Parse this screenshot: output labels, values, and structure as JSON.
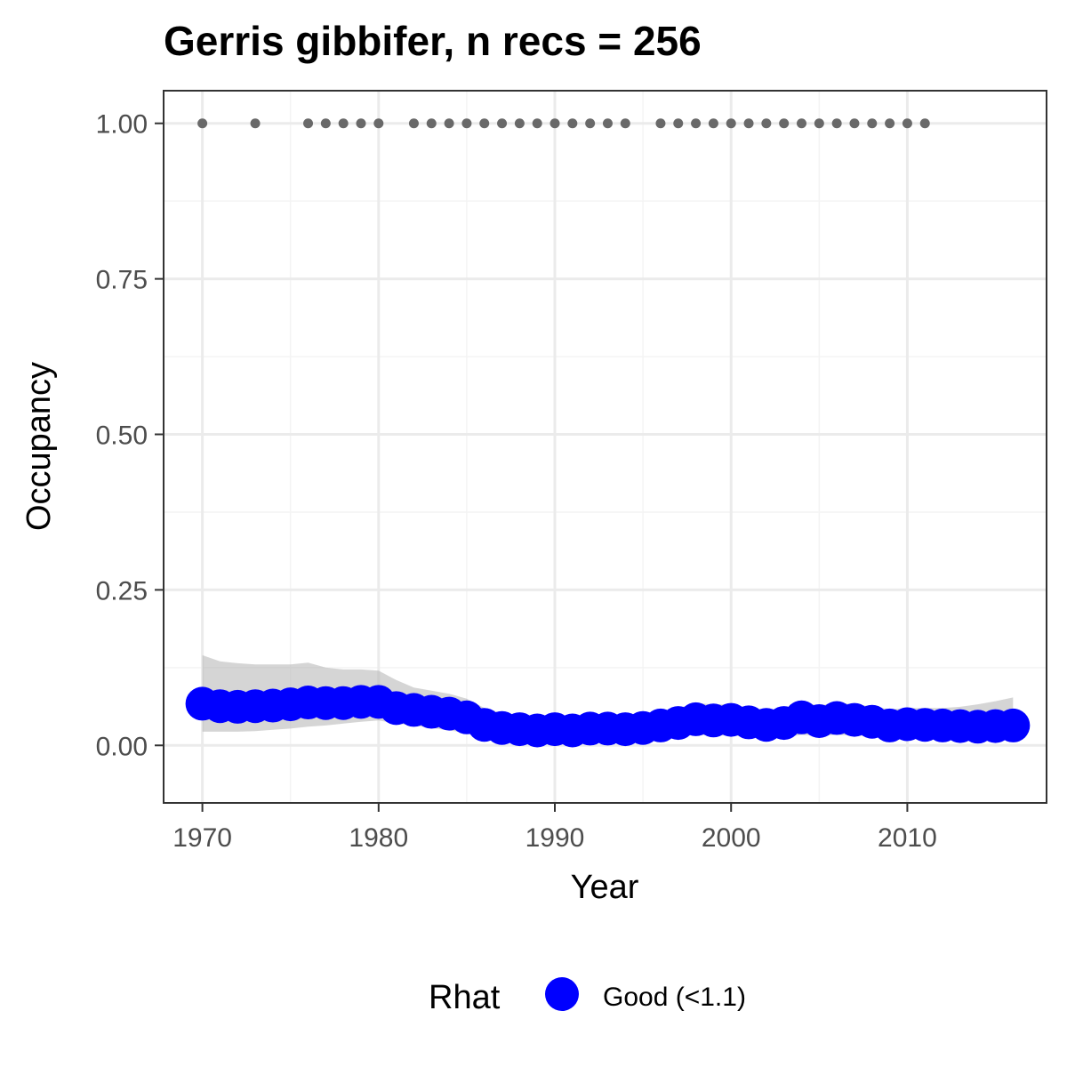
{
  "chart_data": {
    "type": "line",
    "title": "Gerris gibbifer, n recs = 256",
    "xlabel": "Year",
    "ylabel": "Occupancy",
    "xlim": [
      1967.8,
      2017.9
    ],
    "ylim": [
      -0.0925,
      1.0525
    ],
    "x_ticks": [
      1970,
      1980,
      1990,
      2000,
      2010
    ],
    "x_tick_labels": [
      "1970",
      "1980",
      "1990",
      "2000",
      "2010"
    ],
    "y_ticks": [
      0,
      0.25,
      0.5,
      0.75,
      1
    ],
    "y_tick_labels": [
      "0.00",
      "0.25",
      "0.50",
      "0.75",
      "1.00"
    ],
    "grid": true,
    "series": [
      {
        "name": "Good (<1.1)",
        "color": "#0000ff",
        "x": [
          1970,
          1971,
          1972,
          1973,
          1974,
          1975,
          1976,
          1977,
          1978,
          1979,
          1980,
          1981,
          1982,
          1983,
          1984,
          1985,
          1986,
          1987,
          1988,
          1989,
          1990,
          1991,
          1992,
          1993,
          1994,
          1995,
          1996,
          1997,
          1998,
          1999,
          2000,
          2001,
          2002,
          2003,
          2004,
          2005,
          2006,
          2007,
          2008,
          2009,
          2010,
          2011,
          2012,
          2013,
          2014,
          2015,
          2016
        ],
        "values": [
          0.067,
          0.063,
          0.062,
          0.063,
          0.064,
          0.066,
          0.069,
          0.068,
          0.068,
          0.07,
          0.07,
          0.06,
          0.057,
          0.054,
          0.051,
          0.045,
          0.033,
          0.028,
          0.026,
          0.024,
          0.026,
          0.024,
          0.027,
          0.027,
          0.026,
          0.028,
          0.032,
          0.036,
          0.042,
          0.04,
          0.041,
          0.037,
          0.033,
          0.036,
          0.045,
          0.039,
          0.044,
          0.041,
          0.038,
          0.032,
          0.034,
          0.033,
          0.032,
          0.031,
          0.03,
          0.031,
          0.032
        ],
        "lower": [
          0.022,
          0.022,
          0.022,
          0.023,
          0.025,
          0.027,
          0.03,
          0.032,
          0.035,
          0.038,
          0.04,
          0.035,
          0.032,
          0.028,
          0.024,
          0.02,
          0.013,
          0.01,
          0.009,
          0.008,
          0.008,
          0.008,
          0.009,
          0.009,
          0.009,
          0.01,
          0.012,
          0.014,
          0.017,
          0.016,
          0.016,
          0.014,
          0.012,
          0.013,
          0.017,
          0.015,
          0.017,
          0.016,
          0.015,
          0.012,
          0.013,
          0.012,
          0.011,
          0.01,
          0.01,
          0.01,
          0.01
        ],
        "upper": [
          0.145,
          0.135,
          0.132,
          0.13,
          0.13,
          0.13,
          0.133,
          0.125,
          0.122,
          0.122,
          0.12,
          0.105,
          0.093,
          0.088,
          0.083,
          0.075,
          0.06,
          0.052,
          0.048,
          0.045,
          0.046,
          0.044,
          0.047,
          0.047,
          0.046,
          0.049,
          0.054,
          0.06,
          0.068,
          0.066,
          0.066,
          0.061,
          0.056,
          0.059,
          0.07,
          0.064,
          0.069,
          0.066,
          0.063,
          0.058,
          0.06,
          0.06,
          0.06,
          0.062,
          0.066,
          0.071,
          0.077
        ]
      }
    ],
    "observations": {
      "value": 1,
      "x": [
        1970,
        1973,
        1976,
        1977,
        1978,
        1979,
        1980,
        1982,
        1983,
        1984,
        1985,
        1986,
        1987,
        1988,
        1989,
        1990,
        1991,
        1992,
        1993,
        1994,
        1996,
        1997,
        1998,
        1999,
        2000,
        2001,
        2002,
        2003,
        2004,
        2005,
        2006,
        2007,
        2008,
        2009,
        2010,
        2011
      ]
    },
    "legend": {
      "title": "Rhat",
      "placement": "bottom",
      "entries": [
        {
          "label": "Good (<1.1)",
          "color": "#0000ff"
        }
      ]
    },
    "colors": {
      "band": "#b3b3b3",
      "observation": "#696969",
      "grid_major": "#ebebeb",
      "grid_minor": "#f4f4f4",
      "panel_border": "#333333",
      "tick_label": "#4d4d4d"
    }
  }
}
